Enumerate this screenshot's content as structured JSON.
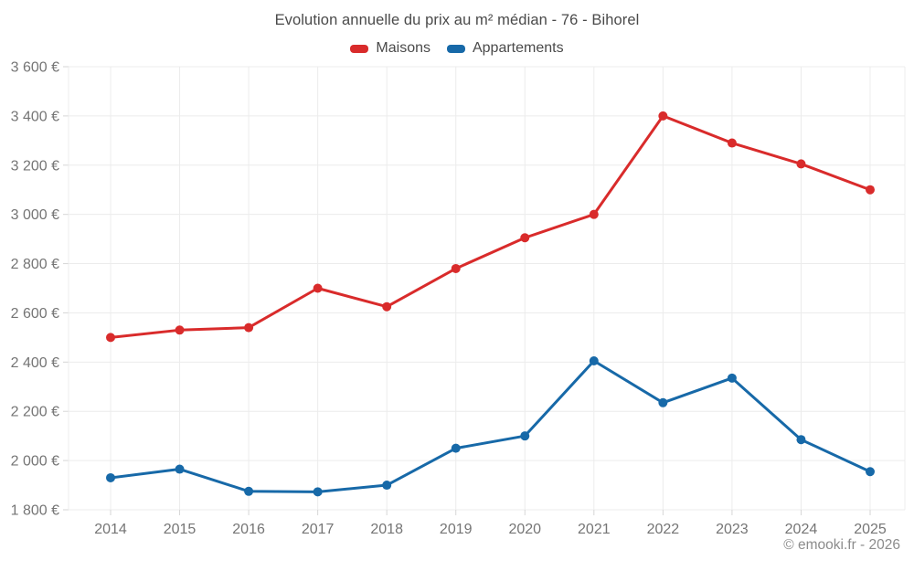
{
  "chart_data": {
    "type": "line",
    "title": "Evolution annuelle du prix au m² médian - 76 - Bihorel",
    "categories": [
      "2014",
      "2015",
      "2016",
      "2017",
      "2018",
      "2019",
      "2020",
      "2021",
      "2022",
      "2023",
      "2024",
      "2025"
    ],
    "series": [
      {
        "name": "Maisons",
        "color": "#d92b2b",
        "values": [
          2500,
          2530,
          2540,
          2700,
          2625,
          2780,
          2905,
          3000,
          3400,
          3290,
          3205,
          3100
        ]
      },
      {
        "name": "Appartements",
        "color": "#1769a8",
        "values": [
          1930,
          1965,
          1875,
          1873,
          1900,
          2050,
          2100,
          2405,
          2235,
          2335,
          2085,
          1955
        ]
      }
    ],
    "ylim": [
      1800,
      3600
    ],
    "y_tick_step": 200,
    "y_tick_labels": [
      "1 800 €",
      "2 000 €",
      "2 200 €",
      "2 400 €",
      "2 600 €",
      "2 800 €",
      "3 000 €",
      "3 200 €",
      "3 400 €",
      "3 600 €"
    ],
    "grid": true,
    "legend_position": "top",
    "xlabel": "",
    "ylabel": ""
  },
  "footer": {
    "copyright": "© emooki.fr - 2026"
  },
  "colors": {
    "background": "#ffffff",
    "grid_line": "#ececec",
    "tick_mark": "#d6d6d6",
    "axis_text": "#757575",
    "title_text": "#4a4a4a",
    "footer_text": "#8c8c8c"
  }
}
